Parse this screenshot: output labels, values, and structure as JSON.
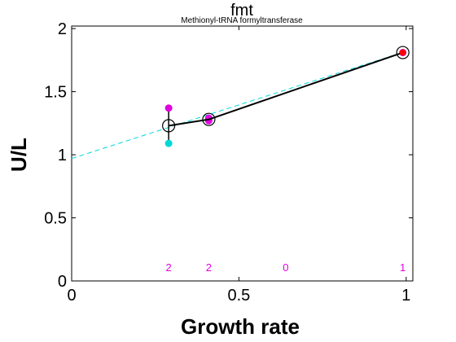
{
  "chart_data": {
    "type": "line",
    "title": "fmt",
    "subtitle": "Methionyl-tRNA formyltransferase",
    "xlabel": "Growth rate",
    "ylabel": "U/L",
    "xlim": [
      0,
      1.02
    ],
    "ylim": [
      0,
      2.02
    ],
    "xticks": [
      0,
      0.5,
      1
    ],
    "xtick_labels": [
      "0",
      "0.5",
      "1"
    ],
    "yticks": [
      0,
      0.5,
      1,
      1.5,
      2
    ],
    "ytick_labels": [
      "0",
      "0.5",
      "1",
      "1.5",
      "2"
    ],
    "grid": false,
    "series": [
      {
        "role": "mean",
        "style": "black line with open circle markers",
        "color": "#000000",
        "x": [
          0.29,
          0.41,
          0.99
        ],
        "y": [
          1.23,
          1.28,
          1.81
        ],
        "error": [
          0.14,
          0.02,
          0.01
        ]
      },
      {
        "role": "replicate",
        "style": "magenta points",
        "color": "#e000e0",
        "x": [
          0.29,
          0.41,
          0.41,
          0.99
        ],
        "y": [
          1.37,
          1.27,
          1.29,
          1.81
        ]
      },
      {
        "role": "replicate",
        "style": "cyan points",
        "color": "#00d8d8",
        "x": [
          0.29
        ],
        "y": [
          1.09
        ]
      },
      {
        "role": "fit",
        "style": "cyan dashed regression line",
        "color": "#00d8d8",
        "x": [
          0,
          1
        ],
        "y": [
          0.97,
          1.82
        ]
      },
      {
        "role": "replicate-mean",
        "style": "red dot inside marker",
        "color": "#ff0000",
        "x": [
          0.99
        ],
        "y": [
          1.81
        ]
      }
    ],
    "annotations": [
      {
        "x": 0.29,
        "text": "2"
      },
      {
        "x": 0.41,
        "text": "2"
      },
      {
        "x": 0.64,
        "text": "0"
      },
      {
        "x": 0.99,
        "text": "1"
      }
    ],
    "annotation_y": 0.11
  }
}
